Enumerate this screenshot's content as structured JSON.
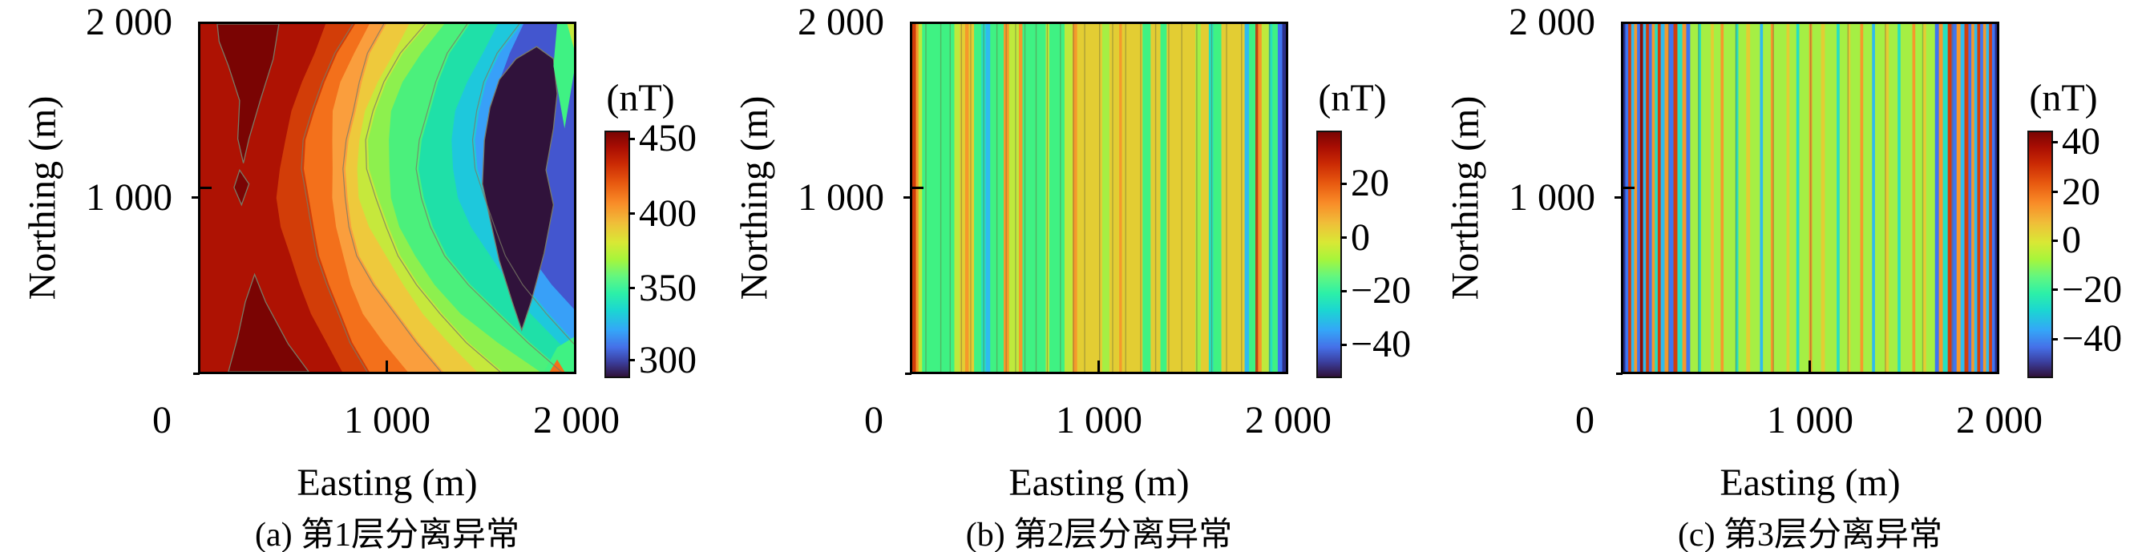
{
  "figure_title": "",
  "panels": [
    {
      "id": "a",
      "caption": "(a) 第1层分离异常",
      "xlabel": "Easting (m)",
      "ylabel": "Northing (m)",
      "x_ticks": [
        "0",
        "1 000",
        "2 000"
      ],
      "y_ticks": [
        "2 000",
        "1 000"
      ],
      "colorbar": {
        "unit": "(nT)",
        "ticks": [
          {
            "label": "450",
            "f": 0.033
          },
          {
            "label": "400",
            "f": 0.34
          },
          {
            "label": "350",
            "f": 0.645
          },
          {
            "label": "300",
            "f": 0.94
          }
        ]
      }
    },
    {
      "id": "b",
      "caption": "(b) 第2层分离异常",
      "xlabel": "Easting (m)",
      "ylabel": "Northing (m)",
      "x_ticks": [
        "0",
        "1 000",
        "2 000"
      ],
      "y_ticks": [
        "2 000",
        "1 000"
      ],
      "colorbar": {
        "unit": "(nT)",
        "ticks": [
          {
            "label": "20",
            "f": 0.218
          },
          {
            "label": "0",
            "f": 0.438
          },
          {
            "label": "−20",
            "f": 0.656
          },
          {
            "label": "−40",
            "f": 0.877
          }
        ]
      }
    },
    {
      "id": "c",
      "caption": "(c) 第3层分离异常",
      "xlabel": "Easting (m)",
      "ylabel": "Northing (m)",
      "x_ticks": [
        "0",
        "1 000",
        "2 000"
      ],
      "y_ticks": [
        "2 000",
        "1 000"
      ],
      "colorbar": {
        "unit": "(nT)",
        "ticks": [
          {
            "label": "40",
            "f": 0.046
          },
          {
            "label": "20",
            "f": 0.251
          },
          {
            "label": "0",
            "f": 0.45
          },
          {
            "label": "−20",
            "f": 0.651
          },
          {
            "label": "−40",
            "f": 0.853
          }
        ]
      }
    }
  ],
  "chart_data": [
    {
      "type": "heatmap",
      "subtype": "filled-contour",
      "title": "(a) 第1层分离异常",
      "xlabel": "Easting (m)",
      "ylabel": "Northing (m)",
      "xlim": [
        0,
        2000
      ],
      "ylim": [
        0,
        2000
      ],
      "value_unit": "nT",
      "value_range": [
        290,
        455
      ],
      "colorbar_ticks": [
        450,
        400,
        350,
        300
      ],
      "description": "Smooth regional anomaly: high (~450 nT, dark red) along west side, decreasing eastward through orange/yellow/green/teal to a deep low (~290 nT, dark purple closed contour) centered near easting 1750 m, northing 1200 m; slight recovery (green ~350 nT) at the east edge; contour bands form a leftward chevron near northing 1100 m.",
      "base_color": "#ae1203",
      "bands": [
        {
          "c": "#d23d08",
          "b": [
            0.335,
            0.215,
            0.375
          ]
        },
        {
          "c": "#f3701b",
          "b": [
            0.405,
            0.285,
            0.465
          ]
        },
        {
          "c": "#fa9e3d",
          "b": [
            0.455,
            0.345,
            0.55
          ]
        },
        {
          "c": "#eec93c",
          "b": [
            0.505,
            0.39,
            0.645
          ]
        },
        {
          "c": "#c6e83c",
          "b": [
            0.555,
            0.43,
            0.74
          ]
        },
        {
          "c": "#8df04e",
          "b": [
            0.6,
            0.462,
            0.82
          ]
        },
        {
          "c": "#4bf07c",
          "b": [
            0.66,
            0.5,
            0.9
          ]
        },
        {
          "c": "#1fe0a8",
          "b": [
            0.725,
            0.595,
            0.97
          ]
        },
        {
          "c": "#1ec8dc",
          "b": [
            0.79,
            0.69,
            1.05
          ]
        },
        {
          "c": "#38a0f8",
          "b": [
            0.855,
            0.75,
            1.1
          ]
        },
        {
          "c": "#4356cf",
          "b": [
            0.875,
            0.8,
            1.2
          ]
        }
      ],
      "dark_red_blobs": [
        [
          [
            0.045,
            0.0
          ],
          [
            0.21,
            0.0
          ],
          [
            0.195,
            0.1
          ],
          [
            0.16,
            0.22
          ],
          [
            0.13,
            0.33
          ],
          [
            0.115,
            0.4
          ],
          [
            0.1,
            0.33
          ],
          [
            0.105,
            0.22
          ],
          [
            0.075,
            0.12
          ],
          [
            0.05,
            0.05
          ]
        ],
        [
          [
            0.105,
            0.42
          ],
          [
            0.13,
            0.46
          ],
          [
            0.11,
            0.52
          ],
          [
            0.09,
            0.47
          ]
        ],
        [
          [
            0.075,
            1.0
          ],
          [
            0.29,
            1.0
          ],
          [
            0.235,
            0.92
          ],
          [
            0.175,
            0.8
          ],
          [
            0.145,
            0.72
          ],
          [
            0.12,
            0.8
          ],
          [
            0.1,
            0.9
          ]
        ]
      ],
      "dark_red_color": "#7a0403",
      "low_blob_color": "#30123b",
      "low_blob": [
        [
          0.845,
          0.1
        ],
        [
          0.9,
          0.065
        ],
        [
          0.945,
          0.1
        ],
        [
          0.955,
          0.2
        ],
        [
          0.945,
          0.3
        ],
        [
          0.925,
          0.42
        ],
        [
          0.945,
          0.52
        ],
        [
          0.92,
          0.66
        ],
        [
          0.885,
          0.8
        ],
        [
          0.86,
          0.88
        ],
        [
          0.835,
          0.8
        ],
        [
          0.8,
          0.68
        ],
        [
          0.775,
          0.56
        ],
        [
          0.755,
          0.46
        ],
        [
          0.76,
          0.335
        ],
        [
          0.775,
          0.24
        ],
        [
          0.8,
          0.16
        ]
      ],
      "corner_patches": [
        {
          "c": "#3ff283",
          "pts": [
            [
              0.955,
              0.0
            ],
            [
              1.0,
              0.0
            ],
            [
              1.0,
              0.14
            ],
            [
              0.975,
              0.3
            ],
            [
              0.945,
              0.12
            ]
          ]
        },
        {
          "c": "#c6e83c",
          "pts": [
            [
              0.982,
              0.0
            ],
            [
              1.0,
              0.0
            ],
            [
              1.0,
              0.07
            ]
          ]
        },
        {
          "c": "#3ff283",
          "pts": [
            [
              0.92,
              1.0
            ],
            [
              1.0,
              1.0
            ],
            [
              1.0,
              0.9
            ],
            [
              0.955,
              0.93
            ]
          ]
        },
        {
          "c": "#f3701b",
          "pts": [
            [
              0.935,
              1.0
            ],
            [
              0.975,
              1.0
            ],
            [
              0.955,
              0.965
            ]
          ]
        }
      ],
      "contour_line_color": "#7a7a66"
    },
    {
      "type": "heatmap",
      "subtype": "vertical-stripes",
      "title": "(b) 第2层分离异常",
      "xlabel": "Easting (m)",
      "ylabel": "Northing (m)",
      "xlim": [
        0,
        2000
      ],
      "ylim": [
        0,
        2000
      ],
      "value_unit": "nT",
      "value_range": [
        -51,
        40
      ],
      "colorbar_ticks": [
        20,
        0,
        -20,
        -40
      ],
      "description": "Residual anomaly of layer 2: near-vertical stripes, mostly green (~-10 nT) and mustard-yellow (~5 nT) zones with scattered orange (~15 nT), teal/cyan (~-20 nT) stripes; red-orange stripe at west edge and blue/navy stripe at east edge.",
      "stripes": [
        [
          4,
          "R"
        ],
        [
          3,
          "O"
        ],
        [
          4,
          "y"
        ],
        [
          36,
          "G"
        ],
        [
          6,
          "y"
        ],
        [
          6,
          "Y"
        ],
        [
          4,
          "O"
        ],
        [
          6,
          "Y"
        ],
        [
          8,
          "G"
        ],
        [
          5,
          "T"
        ],
        [
          5,
          "C"
        ],
        [
          15,
          "G"
        ],
        [
          6,
          "O"
        ],
        [
          11,
          "y"
        ],
        [
          4,
          "O"
        ],
        [
          26,
          "G"
        ],
        [
          4,
          "y"
        ],
        [
          17,
          "G"
        ],
        [
          9,
          "y"
        ],
        [
          5,
          "O"
        ],
        [
          28,
          "Y"
        ],
        [
          8,
          "g"
        ],
        [
          11,
          "Y"
        ],
        [
          3,
          "O"
        ],
        [
          23,
          "Y"
        ],
        [
          9,
          "G"
        ],
        [
          11,
          "Y"
        ],
        [
          7,
          "G"
        ],
        [
          32,
          "Y"
        ],
        [
          6,
          "g"
        ],
        [
          9,
          "Y"
        ],
        [
          5,
          "T"
        ],
        [
          9,
          "G"
        ],
        [
          26,
          "Y"
        ],
        [
          5,
          "C"
        ],
        [
          7,
          "G"
        ],
        [
          3,
          "R"
        ],
        [
          4,
          "O"
        ],
        [
          8,
          "y"
        ],
        [
          4,
          "T"
        ],
        [
          6,
          "G"
        ],
        [
          5,
          "B"
        ],
        [
          4,
          "N"
        ]
      ],
      "contour_lines": [
        0.035,
        0.075,
        0.1,
        0.13,
        0.155,
        0.19,
        0.225,
        0.25,
        0.275,
        0.3,
        0.33,
        0.36,
        0.395,
        0.43,
        0.46,
        0.5,
        0.535,
        0.57,
        0.61,
        0.65,
        0.685,
        0.72,
        0.76,
        0.8,
        0.84,
        0.88,
        0.92,
        0.955
      ]
    },
    {
      "type": "heatmap",
      "subtype": "vertical-stripes",
      "title": "(c) 第3层分离异常",
      "xlabel": "Easting (m)",
      "ylabel": "Northing (m)",
      "xlim": [
        0,
        2000
      ],
      "ylim": [
        0,
        2000
      ],
      "value_unit": "nT",
      "value_range": [
        -54,
        44
      ],
      "colorbar_ticks": [
        40,
        20,
        0,
        -20,
        -40
      ],
      "description": "Residual anomaly of layer 3: dense thin vertical stripes; strongly oscillating red/orange/blue/cyan clusters near the west (0–350 m) and east (1700–2000 m) edges, light-green background (~0 nT) with sparse thin yellow/teal/orange stripes in the interior.",
      "stripes": [
        [
          2,
          "N"
        ],
        [
          3,
          "B"
        ],
        [
          3,
          "R"
        ],
        [
          3,
          "C"
        ],
        [
          3,
          "O"
        ],
        [
          3,
          "B"
        ],
        [
          3,
          "D"
        ],
        [
          3,
          "C"
        ],
        [
          3,
          "R"
        ],
        [
          3,
          "B"
        ],
        [
          3,
          "O"
        ],
        [
          3,
          "T"
        ],
        [
          3,
          "R"
        ],
        [
          4,
          "C"
        ],
        [
          4,
          "O"
        ],
        [
          5,
          "B"
        ],
        [
          4,
          "R"
        ],
        [
          5,
          "T"
        ],
        [
          4,
          "O"
        ],
        [
          4,
          "B"
        ],
        [
          8,
          "g"
        ],
        [
          3,
          "T"
        ],
        [
          10,
          "g"
        ],
        [
          3,
          "Y"
        ],
        [
          7,
          "g"
        ],
        [
          3,
          "O"
        ],
        [
          12,
          "g"
        ],
        [
          3,
          "T"
        ],
        [
          8,
          "g"
        ],
        [
          4,
          "Y"
        ],
        [
          10,
          "g"
        ],
        [
          3,
          "C"
        ],
        [
          8,
          "g"
        ],
        [
          3,
          "O"
        ],
        [
          13,
          "g"
        ],
        [
          3,
          "Y"
        ],
        [
          7,
          "g"
        ],
        [
          3,
          "T"
        ],
        [
          10,
          "g"
        ],
        [
          3,
          "O"
        ],
        [
          9,
          "g"
        ],
        [
          4,
          "Y"
        ],
        [
          12,
          "g"
        ],
        [
          3,
          "T"
        ],
        [
          8,
          "g"
        ],
        [
          3,
          "Y"
        ],
        [
          10,
          "g"
        ],
        [
          3,
          "O"
        ],
        [
          9,
          "g"
        ],
        [
          3,
          "C"
        ],
        [
          10,
          "g"
        ],
        [
          4,
          "Y"
        ],
        [
          9,
          "g"
        ],
        [
          3,
          "T"
        ],
        [
          12,
          "g"
        ],
        [
          3,
          "O"
        ],
        [
          8,
          "g"
        ],
        [
          3,
          "Y"
        ],
        [
          9,
          "g"
        ],
        [
          4,
          "B"
        ],
        [
          4,
          "O"
        ],
        [
          5,
          "T"
        ],
        [
          4,
          "R"
        ],
        [
          5,
          "B"
        ],
        [
          4,
          "O"
        ],
        [
          4,
          "C"
        ],
        [
          4,
          "R"
        ],
        [
          3,
          "B"
        ],
        [
          3,
          "O"
        ],
        [
          3,
          "C"
        ],
        [
          3,
          "R"
        ],
        [
          3,
          "B"
        ],
        [
          3,
          "O"
        ],
        [
          3,
          "C"
        ],
        [
          3,
          "R"
        ],
        [
          3,
          "B"
        ],
        [
          2,
          "N"
        ]
      ],
      "contour_lines": [
        0.12,
        0.2,
        0.3,
        0.4,
        0.5,
        0.6,
        0.7,
        0.8,
        0.88
      ]
    }
  ],
  "palette": {
    "R": "#d23d0a",
    "D": "#8a0e05",
    "O": "#f5992b",
    "Y": "#e3cd33",
    "y": "#bfe93c",
    "G": "#3ff283",
    "g": "#a5ef44",
    "T": "#26dfc0",
    "C": "#2fbbee",
    "B": "#3f74f0",
    "N": "#2c2f88",
    "P": "#30123b"
  },
  "colorbar_gradient": [
    "#7a0403 0%",
    "#a80d03 6%",
    "#cb2a04 13%",
    "#e85a10 21%",
    "#f98c28 29%",
    "#f0bd39 37%",
    "#d9e835 45%",
    "#a7f53b 52%",
    "#63f77f 59%",
    "#2cf0a8 66%",
    "#1bd6d2 73%",
    "#34a6f8 81%",
    "#4570e8 88%",
    "#3b3f9f 94%",
    "#30123b 100%"
  ]
}
